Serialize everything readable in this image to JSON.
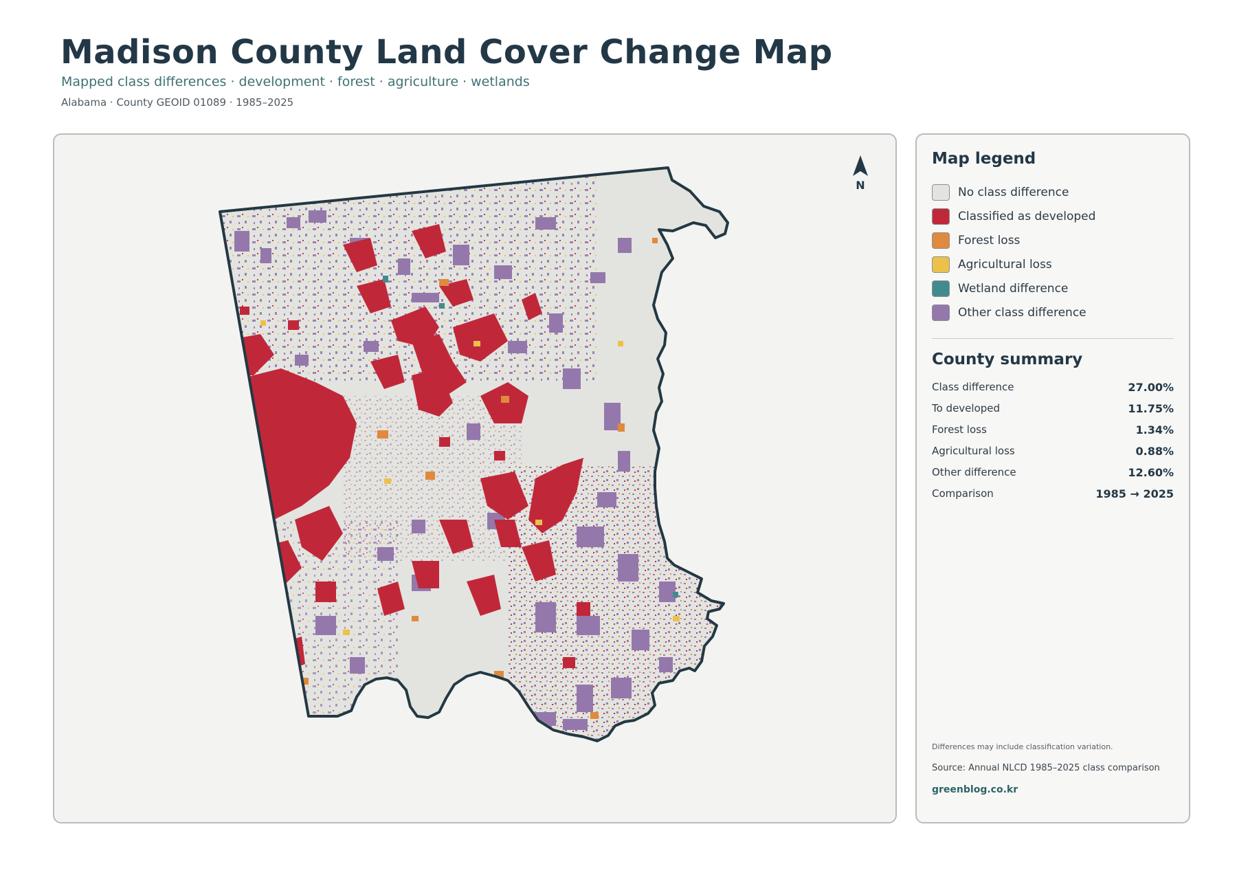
{
  "header": {
    "title": "Madison County Land Cover Change Map",
    "subtitle": "Mapped class differences · development · forest · agriculture · wetlands",
    "meta": "Alabama · County GEOID 01089 · 1985–2025"
  },
  "map": {
    "north_label": "N",
    "colors": {
      "no_change": "#e3e4e0",
      "developed": "#c0283a",
      "forest_loss": "#df8a3c",
      "agricultural_loss": "#ecc14a",
      "wetland": "#418b8f",
      "other": "#9478ab",
      "boundary": "#233842"
    }
  },
  "legend": {
    "title": "Map legend",
    "items": [
      {
        "label": "No class difference",
        "color": "#e3e4e0"
      },
      {
        "label": "Classified as developed",
        "color": "#c0283a"
      },
      {
        "label": "Forest loss",
        "color": "#df8a3c"
      },
      {
        "label": "Agricultural loss",
        "color": "#ecc14a"
      },
      {
        "label": "Wetland difference",
        "color": "#418b8f"
      },
      {
        "label": "Other class difference",
        "color": "#9478ab"
      }
    ]
  },
  "summary": {
    "title": "County summary",
    "rows": [
      {
        "label": "Class difference",
        "value": "27.00%"
      },
      {
        "label": "To developed",
        "value": "11.75%"
      },
      {
        "label": "Forest loss",
        "value": "1.34%"
      },
      {
        "label": "Agricultural loss",
        "value": "0.88%"
      },
      {
        "label": "Other difference",
        "value": "12.60%"
      },
      {
        "label": "Comparison",
        "value": "1985 → 2025"
      }
    ]
  },
  "footer": {
    "note": "Differences may include classification variation.",
    "source": "Source: Annual NLCD 1985–2025 class comparison",
    "site": "greenblog.co.kr"
  }
}
